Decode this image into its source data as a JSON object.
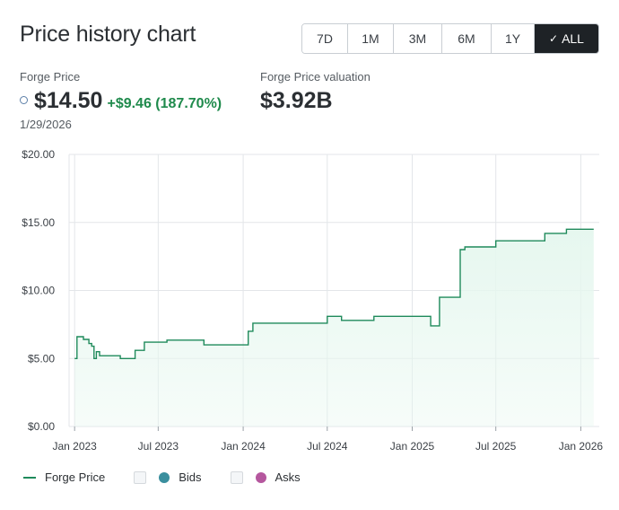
{
  "header": {
    "title": "Price history chart"
  },
  "ranges": [
    {
      "label": "7D",
      "active": false
    },
    {
      "label": "1M",
      "active": false
    },
    {
      "label": "3M",
      "active": false
    },
    {
      "label": "6M",
      "active": false
    },
    {
      "label": "1Y",
      "active": false
    },
    {
      "label": "ALL",
      "active": true
    }
  ],
  "stats": {
    "price_label": "Forge Price",
    "price_value": "$14.50",
    "price_change": "+$9.46 (187.70%)",
    "date": "1/29/2026",
    "valuation_label": "Forge Price valuation",
    "valuation_value": "$3.92B"
  },
  "legend": {
    "price": "Forge Price",
    "bids": "Bids",
    "asks": "Asks",
    "price_color": "#1f8a5b",
    "bids_color": "#3a8f9e",
    "asks_color": "#b5579e"
  },
  "colors": {
    "line": "#1f8a5b",
    "fill": "#e6f7ef",
    "grid": "#e3e6e9",
    "active_range": "#1e2226"
  },
  "chart_data": {
    "type": "area",
    "step": true,
    "series": [
      {
        "name": "Forge Price",
        "points": [
          [
            "2023-01-01",
            5.0
          ],
          [
            "2023-01-06",
            6.6
          ],
          [
            "2023-01-20",
            6.4
          ],
          [
            "2023-02-01",
            6.1
          ],
          [
            "2023-02-07",
            5.9
          ],
          [
            "2023-02-12",
            5.0
          ],
          [
            "2023-02-17",
            5.5
          ],
          [
            "2023-02-24",
            5.2
          ],
          [
            "2023-04-10",
            5.0
          ],
          [
            "2023-05-12",
            5.6
          ],
          [
            "2023-06-01",
            6.2
          ],
          [
            "2023-07-20",
            6.35
          ],
          [
            "2023-10-08",
            6.0
          ],
          [
            "2024-01-12",
            7.0
          ],
          [
            "2024-01-22",
            7.6
          ],
          [
            "2024-07-01",
            8.1
          ],
          [
            "2024-08-01",
            7.8
          ],
          [
            "2024-10-10",
            8.1
          ],
          [
            "2025-02-10",
            7.4
          ],
          [
            "2025-03-01",
            9.5
          ],
          [
            "2025-04-15",
            13.0
          ],
          [
            "2025-04-25",
            13.2
          ],
          [
            "2025-07-01",
            13.65
          ],
          [
            "2025-10-15",
            14.2
          ],
          [
            "2025-12-01",
            14.5
          ],
          [
            "2026-01-29",
            14.5
          ]
        ]
      }
    ],
    "x_ticks": [
      "Jan 2023",
      "Jul 2023",
      "Jan 2024",
      "Jul 2024",
      "Jan 2025",
      "Jul 2025",
      "Jan 2026"
    ],
    "x_tick_dates": [
      "2023-01-01",
      "2023-07-01",
      "2024-01-01",
      "2024-07-01",
      "2025-01-01",
      "2025-07-01",
      "2026-01-01"
    ],
    "y_ticks": [
      "$0.00",
      "$5.00",
      "$10.00",
      "$15.00",
      "$20.00"
    ],
    "ylim": [
      0,
      20
    ],
    "xlim": [
      "2022-12-20",
      "2026-02-10"
    ],
    "grid": true,
    "legend_placement": "bottom-left"
  }
}
